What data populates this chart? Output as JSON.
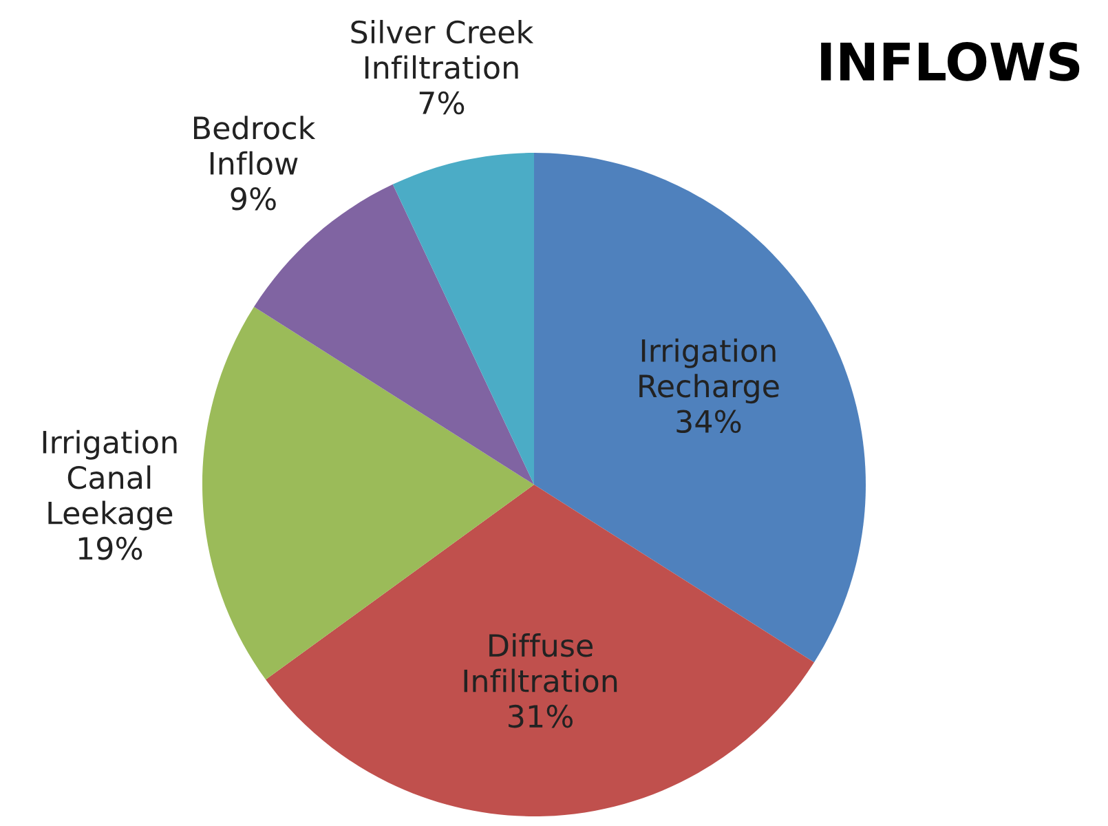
{
  "chart_data": {
    "type": "pie",
    "title": "INFLOWS",
    "categories": [
      "Irrigation\nRecharge",
      "Diffuse\nInfiltration",
      "Irrigation\nCanal\nLeekage",
      "Bedrock\nInflow",
      "Silver Creek\nInfiltration"
    ],
    "values": [
      34,
      31,
      19,
      9,
      7
    ],
    "value_labels": [
      "34%",
      "31%",
      "19%",
      "9%",
      "7%"
    ],
    "colors": [
      "#4f81bd",
      "#c0504d",
      "#9bbb59",
      "#8064a2",
      "#4bacc6"
    ]
  }
}
